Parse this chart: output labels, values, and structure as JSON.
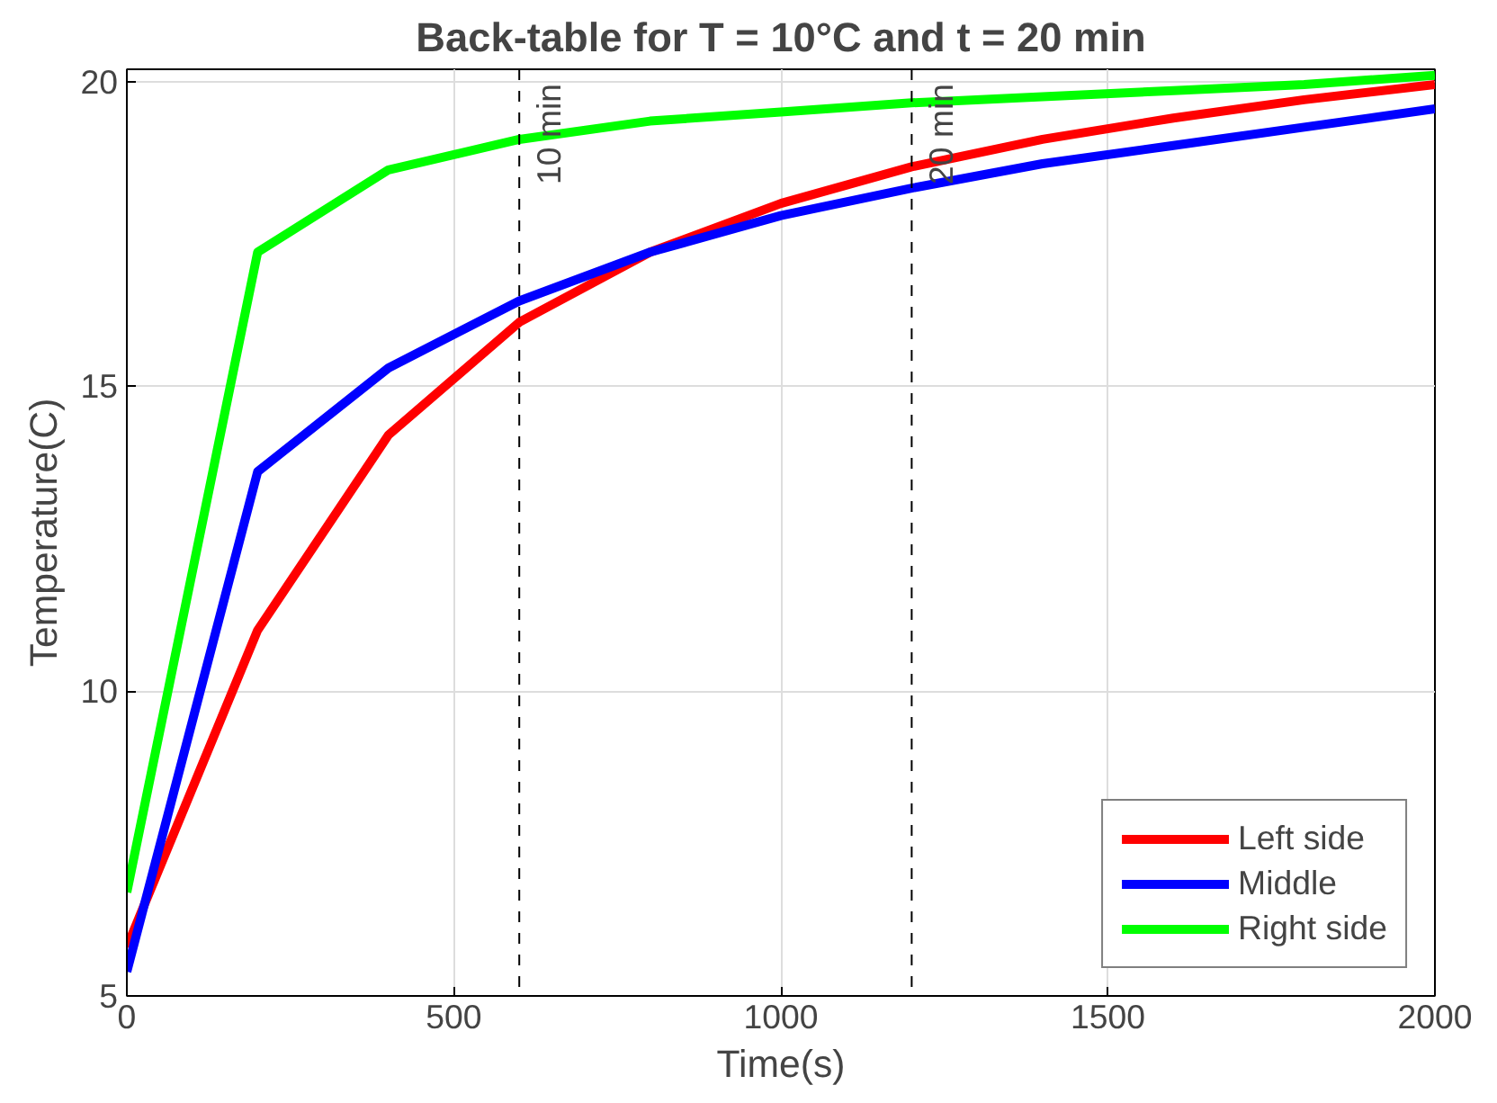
{
  "chart_data": {
    "type": "line",
    "title": "Back-table for T = 10°C and t = 20 min",
    "xlabel": "Time(s)",
    "ylabel": "Temperature(C)",
    "x": [
      0,
      200,
      400,
      600,
      800,
      1000,
      1200,
      1400,
      1600,
      1800,
      2000
    ],
    "series": [
      {
        "name": "Left side",
        "color": "#ff0000",
        "values": [
          5.8,
          11.0,
          14.2,
          16.05,
          17.2,
          18.0,
          18.6,
          19.05,
          19.4,
          19.7,
          19.95
        ]
      },
      {
        "name": "Middle",
        "color": "#0000ff",
        "values": [
          5.4,
          13.6,
          15.3,
          16.4,
          17.2,
          17.8,
          18.25,
          18.65,
          18.95,
          19.25,
          19.55
        ]
      },
      {
        "name": "Right side",
        "color": "#00ff00",
        "values": [
          6.7,
          17.2,
          18.55,
          19.05,
          19.35,
          19.5,
          19.65,
          19.75,
          19.85,
          19.95,
          20.1
        ]
      }
    ],
    "xlim": [
      0,
      2000
    ],
    "ylim": [
      5,
      20.2
    ],
    "xticks": [
      0,
      500,
      1000,
      1500,
      2000
    ],
    "yticks": [
      5,
      10,
      15,
      20
    ],
    "ref_lines": [
      {
        "axis": "x",
        "value": 600,
        "label": "10 min",
        "color": "#000000",
        "line_style": "dashed"
      },
      {
        "axis": "x",
        "value": 1200,
        "label": "20 min",
        "color": "#000000",
        "line_style": "dashed"
      }
    ],
    "grid": true,
    "legend": "bottom right",
    "line_style": "solid",
    "marker": "none"
  }
}
